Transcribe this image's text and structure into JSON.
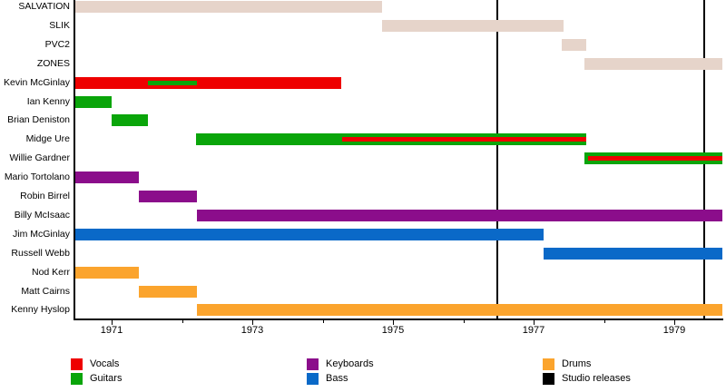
{
  "chart_data": {
    "type": "timeline",
    "title": "",
    "x_axis": {
      "min": 1970.47,
      "max": 1979.68,
      "major_ticks": [
        1971,
        1973,
        1975,
        1977,
        1979
      ],
      "minor_ticks": [
        1972,
        1974,
        1976,
        1978
      ]
    },
    "roles": {
      "band": "#e6d4ca",
      "vocals": "#ee0000",
      "guitars": "#0aa50a",
      "keyboards": "#8b0d8b",
      "bass": "#0a69c8",
      "drums": "#fba42d",
      "studio": "#000000"
    },
    "rows": [
      {
        "label": "SALVATION",
        "segments": [
          {
            "role": "band",
            "start": 1970.47,
            "end": 1974.85
          }
        ],
        "overlays": []
      },
      {
        "label": "SLIK",
        "segments": [
          {
            "role": "band",
            "start": 1974.85,
            "end": 1977.43
          }
        ],
        "overlays": []
      },
      {
        "label": "PVC2",
        "segments": [
          {
            "role": "band",
            "start": 1977.4,
            "end": 1977.75
          }
        ],
        "overlays": []
      },
      {
        "label": "ZONES",
        "segments": [
          {
            "role": "band",
            "start": 1977.72,
            "end": 1979.68
          }
        ],
        "overlays": []
      },
      {
        "label": "Kevin McGinlay",
        "segments": [
          {
            "role": "vocals",
            "start": 1970.47,
            "end": 1974.26
          }
        ],
        "overlays": [
          {
            "role": "guitars",
            "start": 1971.52,
            "end": 1972.21
          }
        ]
      },
      {
        "label": "Ian Kenny",
        "segments": [
          {
            "role": "guitars",
            "start": 1970.47,
            "end": 1971.0
          }
        ],
        "overlays": []
      },
      {
        "label": "Brian Deniston",
        "segments": [
          {
            "role": "guitars",
            "start": 1971.0,
            "end": 1971.52
          }
        ],
        "overlays": []
      },
      {
        "label": "Midge Ure",
        "segments": [
          {
            "role": "guitars",
            "start": 1972.2,
            "end": 1977.75
          }
        ],
        "overlays": [
          {
            "role": "vocals",
            "start": 1974.28,
            "end": 1977.75
          }
        ]
      },
      {
        "label": "Willie Gardner",
        "segments": [
          {
            "role": "guitars",
            "start": 1977.72,
            "end": 1979.68
          }
        ],
        "overlays": [
          {
            "role": "vocals",
            "start": 1977.78,
            "end": 1979.68
          }
        ]
      },
      {
        "label": "Mario Tortolano",
        "segments": [
          {
            "role": "keyboards",
            "start": 1970.47,
            "end": 1971.39
          }
        ],
        "overlays": []
      },
      {
        "label": "Robin Birrel",
        "segments": [
          {
            "role": "keyboards",
            "start": 1971.39,
            "end": 1972.21
          }
        ],
        "overlays": []
      },
      {
        "label": "Billy McIsaac",
        "segments": [
          {
            "role": "keyboards",
            "start": 1972.21,
            "end": 1979.68
          }
        ],
        "overlays": []
      },
      {
        "label": "Jim McGinlay",
        "segments": [
          {
            "role": "bass",
            "start": 1970.47,
            "end": 1977.14
          }
        ],
        "overlays": []
      },
      {
        "label": "Russell Webb",
        "segments": [
          {
            "role": "bass",
            "start": 1977.14,
            "end": 1979.68
          }
        ],
        "overlays": []
      },
      {
        "label": "Nod Kerr",
        "segments": [
          {
            "role": "drums",
            "start": 1970.47,
            "end": 1971.39
          }
        ],
        "overlays": []
      },
      {
        "label": "Matt Cairns",
        "segments": [
          {
            "role": "drums",
            "start": 1971.39,
            "end": 1972.21
          }
        ],
        "overlays": []
      },
      {
        "label": "Kenny Hyslop",
        "segments": [
          {
            "role": "drums",
            "start": 1972.21,
            "end": 1979.68
          }
        ],
        "overlays": []
      }
    ],
    "events": [
      {
        "label": "Studio release",
        "year": 1976.49
      },
      {
        "label": "Studio release",
        "year": 1979.42
      }
    ],
    "legend": [
      {
        "label": "Vocals",
        "role": "vocals"
      },
      {
        "label": "Guitars",
        "role": "guitars"
      },
      {
        "label": "Keyboards",
        "role": "keyboards"
      },
      {
        "label": "Bass",
        "role": "bass"
      },
      {
        "label": "Drums",
        "role": "drums"
      },
      {
        "label": "Studio releases",
        "role": "studio"
      }
    ]
  }
}
